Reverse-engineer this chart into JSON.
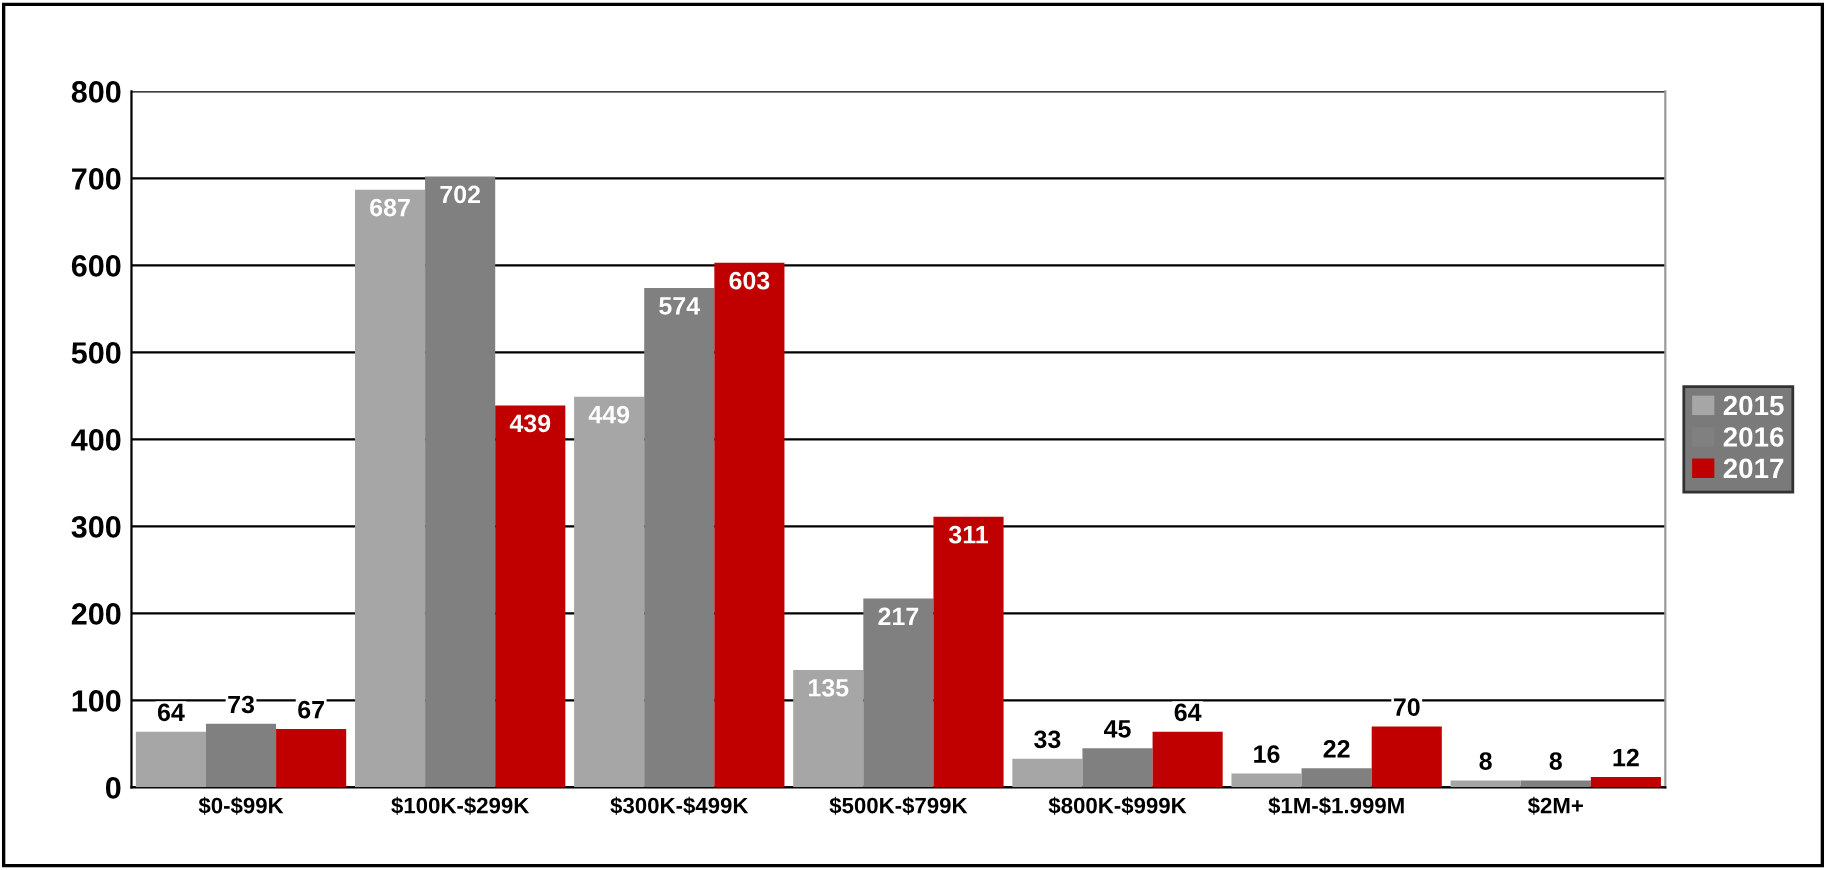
{
  "chart_data": {
    "type": "bar",
    "categories": [
      "$0-$99K",
      "$100K-$299K",
      "$300K-$499K",
      "$500K-$799K",
      "$800K-$999K",
      "$1M-$1.999M",
      "$2M+"
    ],
    "series": [
      {
        "name": "2015",
        "color": "#a6a6a6",
        "values": [
          64,
          687,
          449,
          135,
          33,
          16,
          8
        ]
      },
      {
        "name": "2016",
        "color": "#808080",
        "values": [
          73,
          702,
          574,
          217,
          45,
          22,
          8
        ]
      },
      {
        "name": "2017",
        "color": "#c00000",
        "values": [
          67,
          439,
          603,
          311,
          64,
          70,
          12
        ]
      }
    ],
    "ylim": [
      0,
      800
    ],
    "yticks": [
      0,
      100,
      200,
      300,
      400,
      500,
      600,
      700,
      800
    ],
    "grid": "y",
    "legend": "right",
    "data_labels": true
  }
}
